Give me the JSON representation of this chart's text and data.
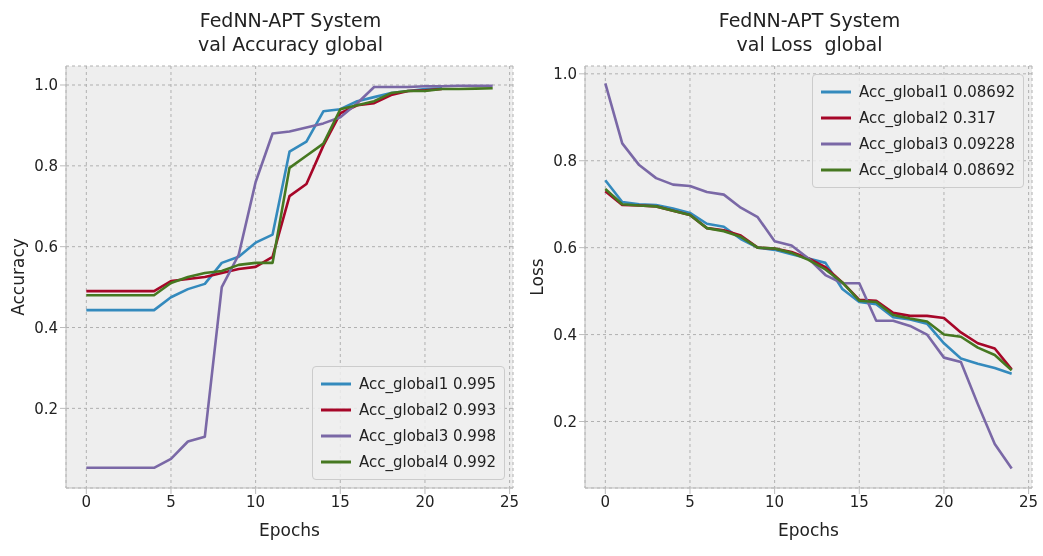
{
  "chart_data": [
    {
      "type": "line",
      "title": "FedNN-APT System\nval Accuracy global",
      "xlabel": "Epochs",
      "ylabel": "Accuracy",
      "x": [
        0,
        1,
        2,
        3,
        4,
        5,
        6,
        7,
        8,
        9,
        10,
        11,
        12,
        13,
        14,
        15,
        16,
        17,
        18,
        19,
        20,
        21,
        22,
        23,
        24
      ],
      "xlim": [
        -1.2,
        25.2
      ],
      "xticks": [
        0,
        5,
        10,
        15,
        20,
        25
      ],
      "ylim": [
        0.003,
        1.047
      ],
      "yticks": [
        0.2,
        0.4,
        0.6,
        0.8,
        {
          "value": 1,
          "label": "1.0"
        }
      ],
      "grid": true,
      "legend": "bottom right",
      "line_style": "solid",
      "marker": "none",
      "series": [
        {
          "name": "Acc_global1 0.995",
          "color": "#348abd",
          "values": [
            0.443,
            0.443,
            0.443,
            0.443,
            0.443,
            0.475,
            0.495,
            0.508,
            0.56,
            0.575,
            0.61,
            0.63,
            0.835,
            0.86,
            0.935,
            0.94,
            0.96,
            0.97,
            0.98,
            0.985,
            0.99,
            0.992,
            null,
            null,
            null
          ]
        },
        {
          "name": "Acc_global2 0.993",
          "color": "#a60628",
          "values": [
            0.49,
            0.49,
            0.49,
            0.49,
            0.49,
            0.515,
            0.52,
            0.525,
            0.535,
            0.545,
            0.55,
            0.575,
            0.725,
            0.755,
            0.85,
            0.93,
            0.95,
            0.955,
            0.975,
            0.985,
            0.987,
            0.99,
            null,
            null,
            null
          ]
        },
        {
          "name": "Acc_global3 0.998",
          "color": "#7a68a6",
          "values": [
            0.053,
            0.053,
            0.053,
            0.053,
            0.053,
            0.075,
            0.118,
            0.13,
            0.5,
            0.58,
            0.76,
            0.88,
            0.885,
            0.895,
            0.905,
            0.92,
            0.955,
            0.995,
            0.995,
            0.995,
            0.997,
            0.997,
            0.998,
            0.998,
            0.998
          ]
        },
        {
          "name": "Acc_global4 0.992",
          "color": "#467821",
          "values": [
            0.48,
            0.48,
            0.48,
            0.48,
            0.48,
            0.51,
            0.525,
            0.535,
            0.54,
            0.555,
            0.56,
            0.56,
            0.795,
            0.825,
            0.855,
            0.94,
            0.95,
            0.96,
            0.98,
            0.985,
            0.985,
            0.99,
            0.99,
            0.991,
            0.992
          ]
        }
      ]
    },
    {
      "type": "line",
      "title": "FedNN-APT System\nval Loss  global",
      "xlabel": "Epochs",
      "ylabel": "Loss",
      "x": [
        0,
        1,
        2,
        3,
        4,
        5,
        6,
        7,
        8,
        9,
        10,
        11,
        12,
        13,
        14,
        15,
        16,
        17,
        18,
        19,
        20,
        21,
        22,
        23,
        24
      ],
      "xlim": [
        -1.2,
        25.2
      ],
      "xticks": [
        0,
        5,
        10,
        15,
        20,
        25
      ],
      "ylim": [
        0.047,
        1.018
      ],
      "yticks": [
        0.2,
        0.4,
        0.6,
        0.8,
        {
          "value": 1,
          "label": "1.0"
        }
      ],
      "grid": true,
      "legend": "top right",
      "line_style": "solid",
      "marker": "none",
      "series": [
        {
          "name": "Acc_global1 0.08692",
          "color": "#348abd",
          "values": [
            0.755,
            0.705,
            0.7,
            0.698,
            0.69,
            0.68,
            0.655,
            0.648,
            0.62,
            0.6,
            0.595,
            0.585,
            0.575,
            0.565,
            0.505,
            0.475,
            0.47,
            0.44,
            0.435,
            0.425,
            0.38,
            0.345,
            0.333,
            0.323,
            0.31
          ]
        },
        {
          "name": "Acc_global2 0.317",
          "color": "#a60628",
          "values": [
            0.73,
            0.698,
            0.697,
            0.695,
            0.685,
            0.675,
            0.645,
            0.64,
            0.628,
            0.6,
            0.598,
            0.59,
            0.575,
            0.555,
            0.52,
            0.48,
            0.478,
            0.45,
            0.443,
            0.443,
            0.438,
            0.405,
            0.38,
            0.368,
            0.32
          ]
        },
        {
          "name": "Acc_global3 0.09228",
          "color": "#7a68a6",
          "values": [
            0.978,
            0.84,
            0.79,
            0.76,
            0.745,
            0.742,
            0.728,
            0.722,
            0.692,
            0.67,
            0.615,
            0.605,
            0.575,
            0.537,
            0.518,
            0.518,
            0.432,
            0.432,
            0.42,
            0.4,
            0.347,
            0.337,
            0.24,
            0.148,
            0.092
          ]
        },
        {
          "name": "Acc_global4 0.08692",
          "color": "#467821",
          "values": [
            0.735,
            0.7,
            0.697,
            0.695,
            0.685,
            0.675,
            0.645,
            0.638,
            0.625,
            0.6,
            0.598,
            0.588,
            0.572,
            0.55,
            0.52,
            0.478,
            0.475,
            0.445,
            0.437,
            0.43,
            0.4,
            0.395,
            0.37,
            0.353,
            0.318
          ]
        }
      ]
    }
  ]
}
